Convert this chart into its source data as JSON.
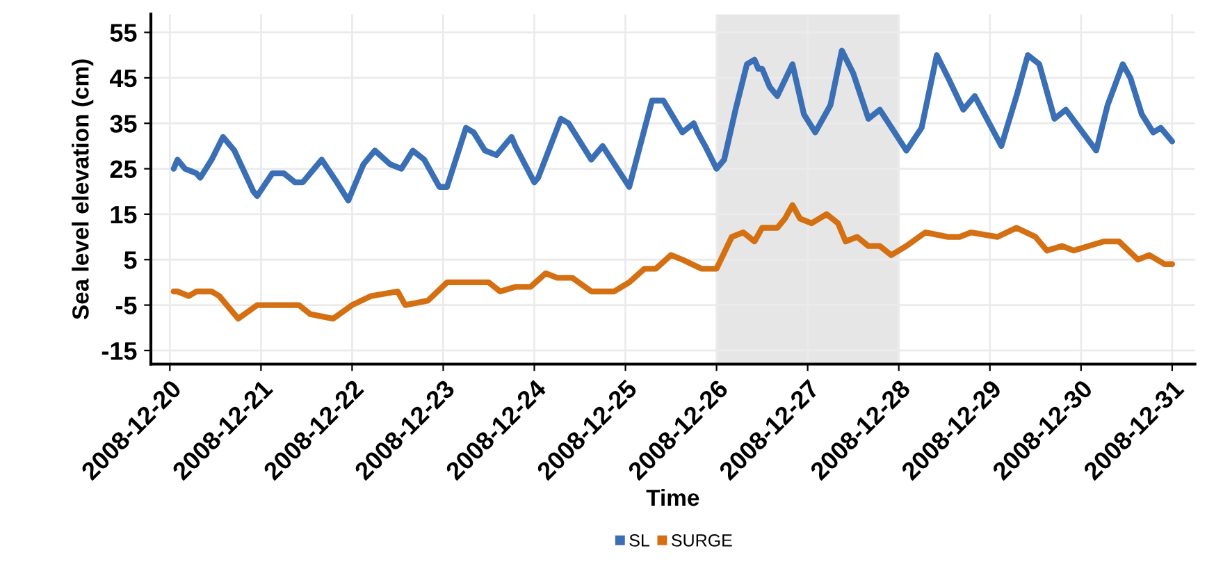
{
  "chart_data": {
    "type": "line",
    "xlabel": "Time",
    "ylabel": "Sea level elevation (cm)",
    "xlim": [
      "2008-12-19T19:00",
      "2008-12-31T06:00"
    ],
    "ylim": [
      -18,
      59
    ],
    "xticks": [
      "2008-12-20",
      "2008-12-21",
      "2008-12-22",
      "2008-12-23",
      "2008-12-24",
      "2008-12-25",
      "2008-12-26",
      "2008-12-27",
      "2008-12-28",
      "2008-12-29",
      "2008-12-30",
      "2008-12-31"
    ],
    "yticks": [
      -15,
      -5,
      5,
      15,
      25,
      35,
      45,
      55
    ],
    "grid": true,
    "legend": "bottom",
    "marker": "none",
    "line_style": "solid",
    "bands": [
      {
        "axis": "x",
        "from": "2008-12-26",
        "to": "2008-12-28",
        "color": "#e6e6e6"
      }
    ],
    "series": [
      {
        "name": "SL",
        "color": "#3a6fb5",
        "x": [
          "2008-12-20T01:00",
          "2008-12-20T02:00",
          "2008-12-20T04:00",
          "2008-12-20T07:00",
          "2008-12-20T08:00",
          "2008-12-20T11:00",
          "2008-12-20T14:00",
          "2008-12-20T17:00",
          "2008-12-20T22:00",
          "2008-12-20T23:00",
          "2008-12-21T03:00",
          "2008-12-21T06:00",
          "2008-12-21T09:00",
          "2008-12-21T11:00",
          "2008-12-21T16:00",
          "2008-12-21T20:00",
          "2008-12-21T23:00",
          "2008-12-22T03:00",
          "2008-12-22T06:00",
          "2008-12-22T10:00",
          "2008-12-22T13:00",
          "2008-12-22T16:00",
          "2008-12-22T19:00",
          "2008-12-22T23:00",
          "2008-12-23T01:00",
          "2008-12-23T06:00",
          "2008-12-23T08:00",
          "2008-12-23T11:00",
          "2008-12-23T14:00",
          "2008-12-23T18:00",
          "2008-12-23T19:00",
          "2008-12-24T00:00",
          "2008-12-24T01:00",
          "2008-12-24T07:00",
          "2008-12-24T09:00",
          "2008-12-24T15:00",
          "2008-12-24T18:00",
          "2008-12-25T01:00",
          "2008-12-25T07:00",
          "2008-12-25T10:00",
          "2008-12-25T15:00",
          "2008-12-25T18:00",
          "2008-12-25T19:00",
          "2008-12-25T21:00",
          "2008-12-26T00:00",
          "2008-12-26T02:00",
          "2008-12-26T05:00",
          "2008-12-26T08:00",
          "2008-12-26T10:00",
          "2008-12-26T11:00",
          "2008-12-26T12:00",
          "2008-12-26T14:00",
          "2008-12-26T16:00",
          "2008-12-26T20:00",
          "2008-12-26T23:00",
          "2008-12-27T02:00",
          "2008-12-27T06:00",
          "2008-12-27T09:00",
          "2008-12-27T12:00",
          "2008-12-27T16:00",
          "2008-12-27T19:00",
          "2008-12-28T02:00",
          "2008-12-28T06:00",
          "2008-12-28T10:00",
          "2008-12-28T13:00",
          "2008-12-28T17:00",
          "2008-12-28T20:00",
          "2008-12-29T03:00",
          "2008-12-29T07:00",
          "2008-12-29T10:00",
          "2008-12-29T13:00",
          "2008-12-29T17:00",
          "2008-12-29T20:00",
          "2008-12-30T04:00",
          "2008-12-30T07:00",
          "2008-12-30T11:00",
          "2008-12-30T13:00",
          "2008-12-30T16:00",
          "2008-12-30T19:00",
          "2008-12-30T21:00",
          "2008-12-31T00:00"
        ],
        "values": [
          25,
          27,
          25,
          24,
          23,
          27,
          32,
          29,
          20,
          19,
          24,
          24,
          22,
          22,
          27,
          22,
          18,
          26,
          29,
          26,
          25,
          29,
          27,
          21,
          21,
          34,
          33,
          29,
          28,
          32,
          30,
          22,
          23,
          36,
          35,
          27,
          30,
          21,
          40,
          40,
          33,
          35,
          33,
          30,
          25,
          27,
          38,
          48,
          49,
          47,
          47,
          43,
          41,
          48,
          37,
          33,
          39,
          51,
          46,
          36,
          38,
          29,
          34,
          50,
          45,
          38,
          41,
          30,
          41,
          50,
          48,
          36,
          38,
          29,
          39,
          48,
          45,
          37,
          33,
          34,
          31
        ]
      },
      {
        "name": "SURGE",
        "color": "#d46f12",
        "x": [
          "2008-12-20T01:00",
          "2008-12-20T02:00",
          "2008-12-20T05:00",
          "2008-12-20T07:00",
          "2008-12-20T11:00",
          "2008-12-20T13:00",
          "2008-12-20T18:00",
          "2008-12-20T23:00",
          "2008-12-21T02:00",
          "2008-12-21T07:00",
          "2008-12-21T10:00",
          "2008-12-21T13:00",
          "2008-12-21T19:00",
          "2008-12-22T00:00",
          "2008-12-22T05:00",
          "2008-12-22T12:00",
          "2008-12-22T14:00",
          "2008-12-22T20:00",
          "2008-12-23T01:00",
          "2008-12-23T06:00",
          "2008-12-23T12:00",
          "2008-12-23T15:00",
          "2008-12-23T19:00",
          "2008-12-23T23:00",
          "2008-12-24T03:00",
          "2008-12-24T06:00",
          "2008-12-24T10:00",
          "2008-12-24T15:00",
          "2008-12-24T21:00",
          "2008-12-25T01:00",
          "2008-12-25T05:00",
          "2008-12-25T08:00",
          "2008-12-25T12:00",
          "2008-12-25T15:00",
          "2008-12-25T20:00",
          "2008-12-26T00:00",
          "2008-12-26T04:00",
          "2008-12-26T07:00",
          "2008-12-26T10:00",
          "2008-12-26T12:00",
          "2008-12-26T16:00",
          "2008-12-26T18:00",
          "2008-12-26T20:00",
          "2008-12-26T22:00",
          "2008-12-27T01:00",
          "2008-12-27T05:00",
          "2008-12-27T08:00",
          "2008-12-27T10:00",
          "2008-12-27T13:00",
          "2008-12-27T16:00",
          "2008-12-27T19:00",
          "2008-12-27T22:00",
          "2008-12-28T02:00",
          "2008-12-28T07:00",
          "2008-12-28T13:00",
          "2008-12-28T16:00",
          "2008-12-28T19:00",
          "2008-12-29T02:00",
          "2008-12-29T07:00",
          "2008-12-29T12:00",
          "2008-12-29T15:00",
          "2008-12-29T19:00",
          "2008-12-29T22:00",
          "2008-12-30T06:00",
          "2008-12-30T10:00",
          "2008-12-30T15:00",
          "2008-12-30T18:00",
          "2008-12-30T22:00",
          "2008-12-31T00:00"
        ],
        "values": [
          -2,
          -2,
          -3,
          -2,
          -2,
          -3,
          -8,
          -5,
          -5,
          -5,
          -5,
          -7,
          -8,
          -5,
          -3,
          -2,
          -5,
          -4,
          0,
          0,
          0,
          -2,
          -1,
          -1,
          2,
          1,
          1,
          -2,
          -2,
          0,
          3,
          3,
          6,
          5,
          3,
          3,
          10,
          11,
          9,
          12,
          12,
          14,
          17,
          14,
          13,
          15,
          13,
          9,
          10,
          8,
          8,
          6,
          8,
          11,
          10,
          10,
          11,
          10,
          12,
          10,
          7,
          8,
          7,
          9,
          9,
          5,
          6,
          4,
          4
        ]
      }
    ]
  }
}
